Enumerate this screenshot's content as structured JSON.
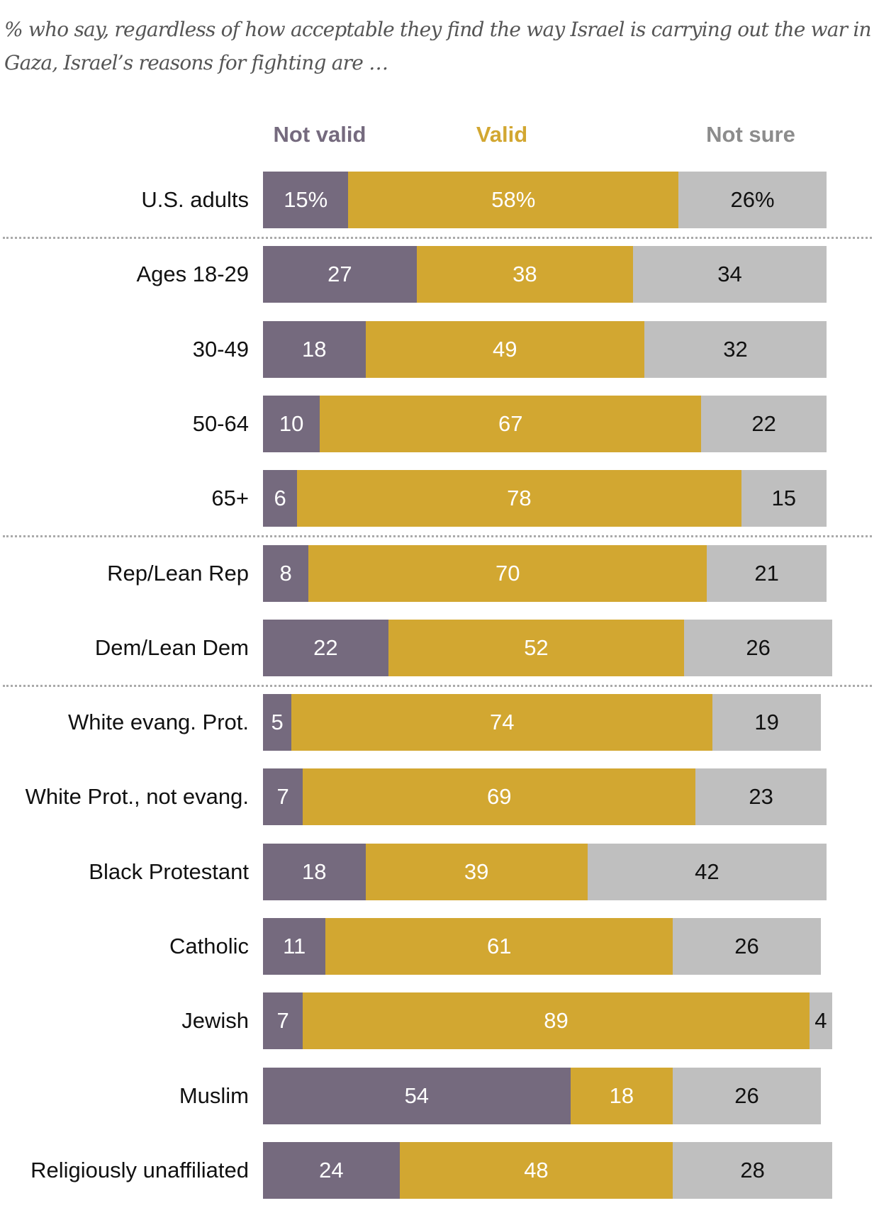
{
  "title": "% who say, regardless of how acceptable they find the way Israel is carrying out the war in Gaza, Israel’s reasons for fighting are …",
  "chart_data": {
    "type": "bar",
    "orientation": "horizontal-stacked",
    "title": "% who say, regardless of how acceptable they find the way Israel is carrying out the war in Gaza, Israel’s reasons for fighting are …",
    "categories": [
      "U.S. adults",
      "Ages 18-29",
      "30-49",
      "50-64",
      "65+",
      "Rep/Lean Rep",
      "Dem/Lean Dem",
      "White evang. Prot.",
      "White Prot., not evang.",
      "Black Protestant",
      "Catholic",
      "Jewish",
      "Muslim",
      "Religiously unaffiliated"
    ],
    "series": [
      {
        "name": "Not valid",
        "color": "#756a7e",
        "text_color": "#ffffff",
        "values": [
          15,
          27,
          18,
          10,
          6,
          8,
          22,
          5,
          7,
          18,
          11,
          7,
          54,
          24
        ]
      },
      {
        "name": "Valid",
        "color": "#d2a731",
        "text_color": "#ffffff",
        "values": [
          58,
          38,
          49,
          67,
          78,
          70,
          52,
          74,
          69,
          39,
          61,
          89,
          18,
          48
        ]
      },
      {
        "name": "Not sure",
        "color": "#bfbfbf",
        "text_color": "#111111",
        "values": [
          26,
          34,
          32,
          22,
          15,
          21,
          26,
          19,
          23,
          42,
          26,
          4,
          26,
          28
        ]
      }
    ],
    "value_labels": [
      [
        "15%",
        "58%",
        "26%"
      ],
      [
        "27",
        "38",
        "34"
      ],
      [
        "18",
        "49",
        "32"
      ],
      [
        "10",
        "67",
        "22"
      ],
      [
        "6",
        "78",
        "15"
      ],
      [
        "8",
        "70",
        "21"
      ],
      [
        "22",
        "52",
        "26"
      ],
      [
        "5",
        "74",
        "19"
      ],
      [
        "7",
        "69",
        "23"
      ],
      [
        "18",
        "39",
        "42"
      ],
      [
        "11",
        "61",
        "26"
      ],
      [
        "7",
        "89",
        "4"
      ],
      [
        "54",
        "18",
        "26"
      ],
      [
        "24",
        "48",
        "28"
      ]
    ],
    "legend": "top",
    "group_separators_after": [
      0,
      4,
      6
    ],
    "xlim": [
      0,
      100
    ]
  }
}
